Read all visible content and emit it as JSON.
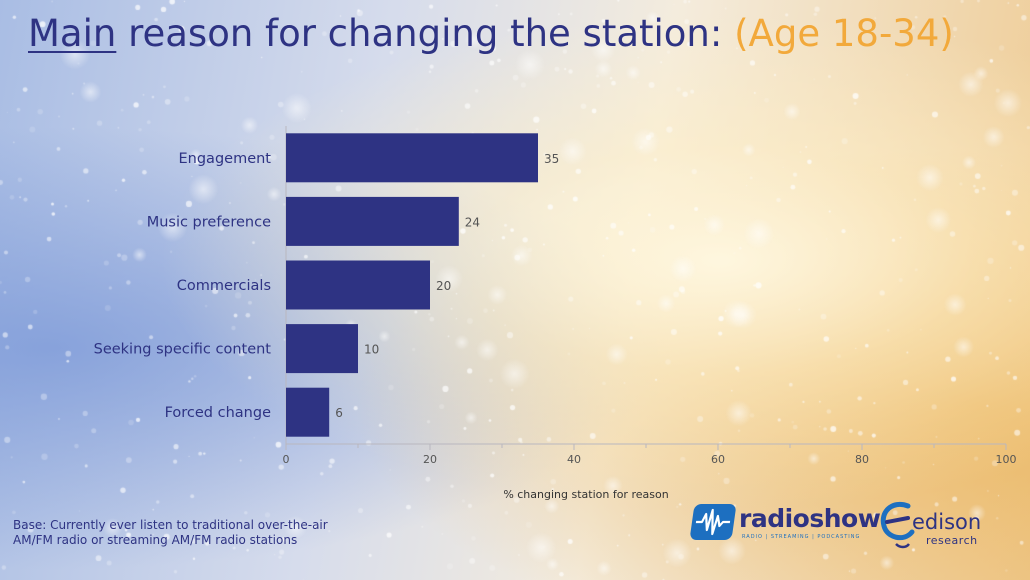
{
  "title": {
    "prefix": "Main",
    "main": " reason for changing the station: ",
    "highlight": "(Age 18-34)"
  },
  "colors": {
    "bar": "#2e3383",
    "title": "#2e3383",
    "highlight": "#f2a93b",
    "axis": "#b9b7bf",
    "label": "#2e3383",
    "value": "#555555"
  },
  "chart_data": {
    "type": "bar",
    "orientation": "horizontal",
    "categories": [
      "Engagement",
      "Music preference",
      "Commercials",
      "Seeking specific content",
      "Forced change"
    ],
    "values": [
      35,
      24,
      20,
      10,
      6
    ],
    "data_labels": [
      "35",
      "24",
      "20",
      "10",
      "6"
    ],
    "xlabel": "% changing station for reason",
    "ylabel": "",
    "xlim": [
      0,
      100
    ],
    "xticks": [
      0,
      20,
      40,
      60,
      80,
      100
    ],
    "grid": false,
    "legend": "none"
  },
  "footnote": {
    "line1": "Base: Currently ever listen to traditional over-the-air",
    "line2": "AM/FM radio or streaming AM/FM radio stations"
  },
  "logos": {
    "radioshow": {
      "name": "radioshow",
      "tagline": "RADIO | STREAMING | PODCASTING",
      "icon": "soundwave-icon"
    },
    "edison": {
      "name": "edison",
      "sub": "research",
      "icon": "swirl-e-icon"
    }
  }
}
